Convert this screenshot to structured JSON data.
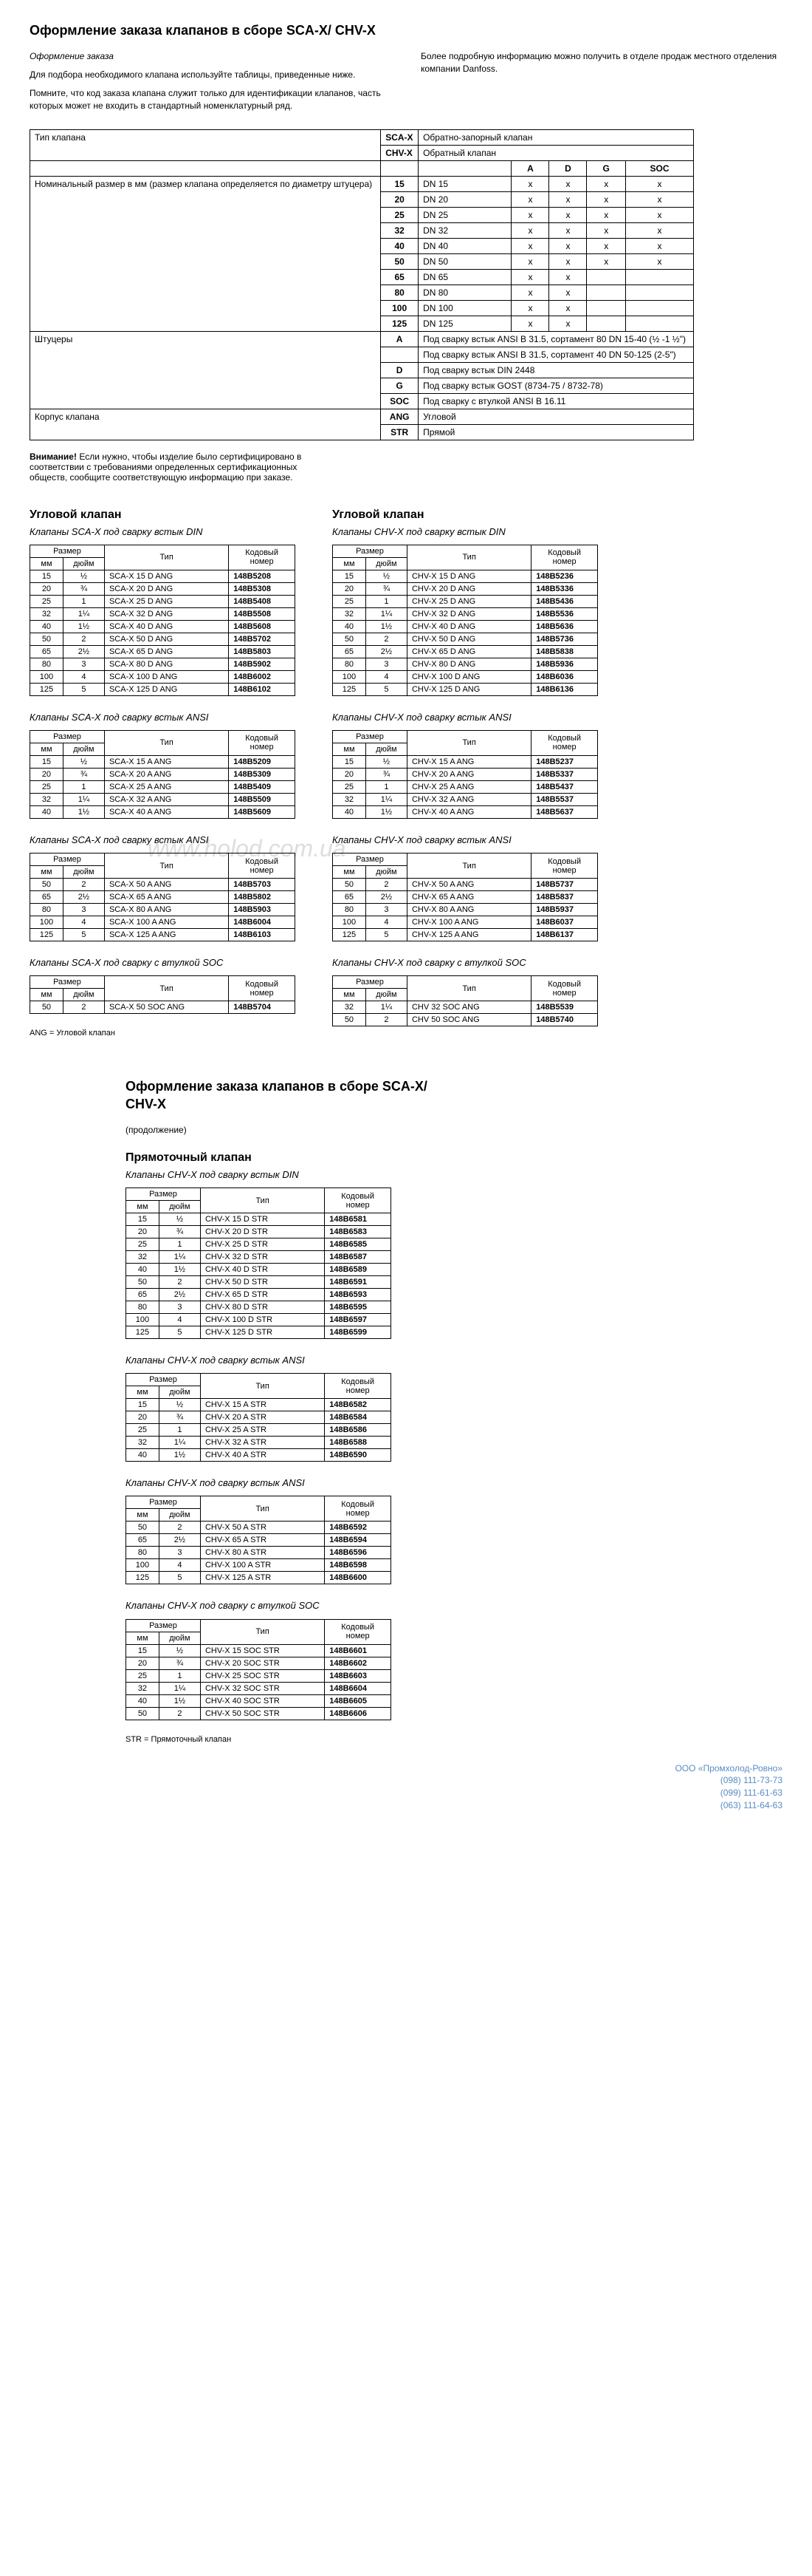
{
  "header": {
    "title": "Оформление заказа клапанов в сборе SCA-X/ CHV-X",
    "intro_title": "Оформление заказа",
    "intro_p1": "Для подбора необходимого клапана используйте таблицы, приведенные ниже.",
    "intro_p2": "Помните, что код заказа клапана служит только для идентификации клапанов, часть которых может не входить в стандартный номенклатурный ряд.",
    "intro_right": "Более подробную информацию можно получить в отделе продаж местного отделения компании Danfoss."
  },
  "spec": {
    "row_type": "Тип клапана",
    "sca": "SCA-X",
    "sca_desc": "Обратно-запорный клапан",
    "chv": "CHV-X",
    "chv_desc": "Обратный клапан",
    "cols": [
      "A",
      "D",
      "G",
      "SOC"
    ],
    "size_label": "Номинальный размер в мм (размер клапана определяется по диаметру штуцера)",
    "sizes": [
      {
        "mm": "15",
        "dn": "DN 15",
        "x": [
          "x",
          "x",
          "x",
          "x"
        ]
      },
      {
        "mm": "20",
        "dn": "DN 20",
        "x": [
          "x",
          "x",
          "x",
          "x"
        ]
      },
      {
        "mm": "25",
        "dn": "DN 25",
        "x": [
          "x",
          "x",
          "x",
          "x"
        ]
      },
      {
        "mm": "32",
        "dn": "DN 32",
        "x": [
          "x",
          "x",
          "x",
          "x"
        ]
      },
      {
        "mm": "40",
        "dn": "DN 40",
        "x": [
          "x",
          "x",
          "x",
          "x"
        ]
      },
      {
        "mm": "50",
        "dn": "DN 50",
        "x": [
          "x",
          "x",
          "x",
          "x"
        ]
      },
      {
        "mm": "65",
        "dn": "DN 65",
        "x": [
          "x",
          "x",
          "",
          ""
        ]
      },
      {
        "mm": "80",
        "dn": "DN 80",
        "x": [
          "x",
          "x",
          "",
          ""
        ]
      },
      {
        "mm": "100",
        "dn": "DN 100",
        "x": [
          "x",
          "x",
          "",
          ""
        ]
      },
      {
        "mm": "125",
        "dn": "DN 125",
        "x": [
          "x",
          "x",
          "",
          ""
        ]
      }
    ],
    "fittings_label": "Штуцеры",
    "fittings": [
      {
        "c": "A",
        "d": "Под сварку встык ANSI B 31.5, сортамент 80 DN 15-40 (½ -1 ½\")"
      },
      {
        "c": "",
        "d": "Под сварку встык ANSI B 31.5, сортамент 40 DN 50-125 (2-5\")"
      },
      {
        "c": "D",
        "d": "Под сварку встык DIN 2448"
      },
      {
        "c": "G",
        "d": "Под сварку встык GOST (8734-75 / 8732-78)"
      },
      {
        "c": "SOC",
        "d": "Под сварку с втулкой ANSI B 16.11"
      }
    ],
    "body_label": "Корпус клапана",
    "body": [
      {
        "c": "ANG",
        "d": "Угловой"
      },
      {
        "c": "STR",
        "d": "Прямой"
      }
    ]
  },
  "note": {
    "title": "Внимание!",
    "text": "Если нужно, чтобы изделие было сертифицировано в соответствии с требованиями определенных сертификационных обществ, сообщите соответствующую информацию при заказе."
  },
  "headers": {
    "size": "Размер",
    "mm": "мм",
    "in": "дюйм",
    "type": "Тип",
    "code": "Кодовый номер",
    "angle": "Угловой клапан",
    "straight": "Прямоточный клапан",
    "continued_title": "Оформление заказа клапанов в сборе SCA-X/ CHV-X",
    "continued": "(продолжение)"
  },
  "tables": {
    "sca_din": {
      "title": "Клапаны SCA-X под сварку встык DIN",
      "rows": [
        [
          "15",
          "½",
          "SCA-X 15 D ANG",
          "148B5208"
        ],
        [
          "20",
          "¾",
          "SCA-X 20 D ANG",
          "148B5308"
        ],
        [
          "25",
          "1",
          "SCA-X 25 D ANG",
          "148B5408"
        ],
        [
          "32",
          "1¼",
          "SCA-X 32 D ANG",
          "148B5508"
        ],
        [
          "40",
          "1½",
          "SCA-X 40 D ANG",
          "148B5608"
        ],
        [
          "50",
          "2",
          "SCA-X 50 D ANG",
          "148B5702"
        ],
        [
          "65",
          "2½",
          "SCA-X 65 D ANG",
          "148B5803"
        ],
        [
          "80",
          "3",
          "SCA-X 80 D ANG",
          "148B5902"
        ],
        [
          "100",
          "4",
          "SCA-X 100 D ANG",
          "148B6002"
        ],
        [
          "125",
          "5",
          "SCA-X 125 D ANG",
          "148B6102"
        ]
      ]
    },
    "chv_din": {
      "title": "Клапаны CHV-X под сварку встык DIN",
      "rows": [
        [
          "15",
          "½",
          "CHV-X 15 D ANG",
          "148B5236"
        ],
        [
          "20",
          "¾",
          "CHV-X 20 D ANG",
          "148B5336"
        ],
        [
          "25",
          "1",
          "CHV-X 25 D ANG",
          "148B5436"
        ],
        [
          "32",
          "1¼",
          "CHV-X 32 D ANG",
          "148B5536"
        ],
        [
          "40",
          "1½",
          "CHV-X 40 D ANG",
          "148B5636"
        ],
        [
          "50",
          "2",
          "CHV-X 50 D ANG",
          "148B5736"
        ],
        [
          "65",
          "2½",
          "CHV-X 65 D ANG",
          "148B5838"
        ],
        [
          "80",
          "3",
          "CHV-X 80 D ANG",
          "148B5936"
        ],
        [
          "100",
          "4",
          "CHV-X 100 D ANG",
          "148B6036"
        ],
        [
          "125",
          "5",
          "CHV-X 125 D ANG",
          "148B6136"
        ]
      ]
    },
    "sca_ansi1": {
      "title": "Клапаны SCA-X под сварку встык ANSI",
      "rows": [
        [
          "15",
          "½",
          "SCA-X 15 A ANG",
          "148B5209"
        ],
        [
          "20",
          "¾",
          "SCA-X 20 A ANG",
          "148B5309"
        ],
        [
          "25",
          "1",
          "SCA-X 25 A ANG",
          "148B5409"
        ],
        [
          "32",
          "1¼",
          "SCA-X 32 A ANG",
          "148B5509"
        ],
        [
          "40",
          "1½",
          "SCA-X 40 A ANG",
          "148B5609"
        ]
      ]
    },
    "chv_ansi1": {
      "title": "Клапаны CHV-X под сварку встык ANSI",
      "rows": [
        [
          "15",
          "½",
          "CHV-X 15 A ANG",
          "148B5237"
        ],
        [
          "20",
          "¾",
          "CHV-X 20 A ANG",
          "148B5337"
        ],
        [
          "25",
          "1",
          "CHV-X 25 A ANG",
          "148B5437"
        ],
        [
          "32",
          "1¼",
          "CHV-X 32 A ANG",
          "148B5537"
        ],
        [
          "40",
          "1½",
          "CHV-X 40 A ANG",
          "148B5637"
        ]
      ]
    },
    "sca_ansi2": {
      "title": "Клапаны SCA-X под сварку встык ANSI",
      "rows": [
        [
          "50",
          "2",
          "SCA-X 50 A ANG",
          "148B5703"
        ],
        [
          "65",
          "2½",
          "SCA-X 65 A ANG",
          "148B5802"
        ],
        [
          "80",
          "3",
          "SCA-X 80 A ANG",
          "148B5903"
        ],
        [
          "100",
          "4",
          "SCA-X 100 A ANG",
          "148B6004"
        ],
        [
          "125",
          "5",
          "SCA-X 125 A ANG",
          "148B6103"
        ]
      ]
    },
    "chv_ansi2": {
      "title": "Клапаны CHV-X под сварку встык ANSI",
      "rows": [
        [
          "50",
          "2",
          "CHV-X 50 A ANG",
          "148B5737"
        ],
        [
          "65",
          "2½",
          "CHV-X 65 A ANG",
          "148B5837"
        ],
        [
          "80",
          "3",
          "CHV-X 80 A ANG",
          "148B5937"
        ],
        [
          "100",
          "4",
          "CHV-X 100 A ANG",
          "148B6037"
        ],
        [
          "125",
          "5",
          "CHV-X 125 A ANG",
          "148B6137"
        ]
      ]
    },
    "sca_soc": {
      "title": "Клапаны SCA-X под сварку с втулкой SOC",
      "rows": [
        [
          "50",
          "2",
          "SCA-X 50 SOC ANG",
          "148B5704"
        ]
      ]
    },
    "chv_soc": {
      "title": "Клапаны CHV-X под сварку с втулкой SOC",
      "rows": [
        [
          "32",
          "1¼",
          "CHV 32 SOC ANG",
          "148B5539"
        ],
        [
          "50",
          "2",
          "CHV 50 SOC ANG",
          "148B5740"
        ]
      ]
    },
    "str_din": {
      "title": "Клапаны CHV-X под сварку встык DIN",
      "rows": [
        [
          "15",
          "½",
          "CHV-X 15 D STR",
          "148B6581"
        ],
        [
          "20",
          "¾",
          "CHV-X 20 D STR",
          "148B6583"
        ],
        [
          "25",
          "1",
          "CHV-X 25 D STR",
          "148B6585"
        ],
        [
          "32",
          "1¼",
          "CHV-X 32 D STR",
          "148B6587"
        ],
        [
          "40",
          "1½",
          "CHV-X 40 D STR",
          "148B6589"
        ],
        [
          "50",
          "2",
          "CHV-X 50 D STR",
          "148B6591"
        ],
        [
          "65",
          "2½",
          "CHV-X 65 D STR",
          "148B6593"
        ],
        [
          "80",
          "3",
          "CHV-X 80 D STR",
          "148B6595"
        ],
        [
          "100",
          "4",
          "CHV-X 100 D STR",
          "148B6597"
        ],
        [
          "125",
          "5",
          "CHV-X 125 D STR",
          "148B6599"
        ]
      ]
    },
    "str_ansi1": {
      "title": "Клапаны CHV-X под сварку встык ANSI",
      "rows": [
        [
          "15",
          "½",
          "CHV-X 15 A STR",
          "148B6582"
        ],
        [
          "20",
          "¾",
          "CHV-X 20 A STR",
          "148B6584"
        ],
        [
          "25",
          "1",
          "CHV-X 25 A STR",
          "148B6586"
        ],
        [
          "32",
          "1¼",
          "CHV-X 32 A STR",
          "148B6588"
        ],
        [
          "40",
          "1½",
          "CHV-X 40 A STR",
          "148B6590"
        ]
      ]
    },
    "str_ansi2": {
      "title": "Клапаны CHV-X под сварку встык ANSI",
      "rows": [
        [
          "50",
          "2",
          "CHV-X 50 A STR",
          "148B6592"
        ],
        [
          "65",
          "2½",
          "CHV-X 65 A STR",
          "148B6594"
        ],
        [
          "80",
          "3",
          "CHV-X 80 A STR",
          "148B6596"
        ],
        [
          "100",
          "4",
          "CHV-X 100 A STR",
          "148B6598"
        ],
        [
          "125",
          "5",
          "CHV-X 125 A STR",
          "148B6600"
        ]
      ]
    },
    "str_soc": {
      "title": "Клапаны CHV-X под сварку с втулкой SOC",
      "rows": [
        [
          "15",
          "½",
          "CHV-X 15 SOC STR",
          "148B6601"
        ],
        [
          "20",
          "¾",
          "CHV-X 20 SOC STR",
          "148B6602"
        ],
        [
          "25",
          "1",
          "CHV-X 25 SOC STR",
          "148B6603"
        ],
        [
          "32",
          "1¼",
          "CHV-X 32 SOC STR",
          "148B6604"
        ],
        [
          "40",
          "1½",
          "CHV-X 40 SOC STR",
          "148B6605"
        ],
        [
          "50",
          "2",
          "CHV-X 50 SOC STR",
          "148B6606"
        ]
      ]
    }
  },
  "legend": {
    "ang": "ANG      = Угловой клапан",
    "str": "STR       = Прямоточный клапан"
  },
  "watermark": "www.holod.com.ua",
  "contact": {
    "l1": "ООО «Промхолод-Ровно»",
    "l2": "(098) 111-73-73",
    "l3": "(099) 111-61-63",
    "l4": "(063) 111-64-63"
  }
}
